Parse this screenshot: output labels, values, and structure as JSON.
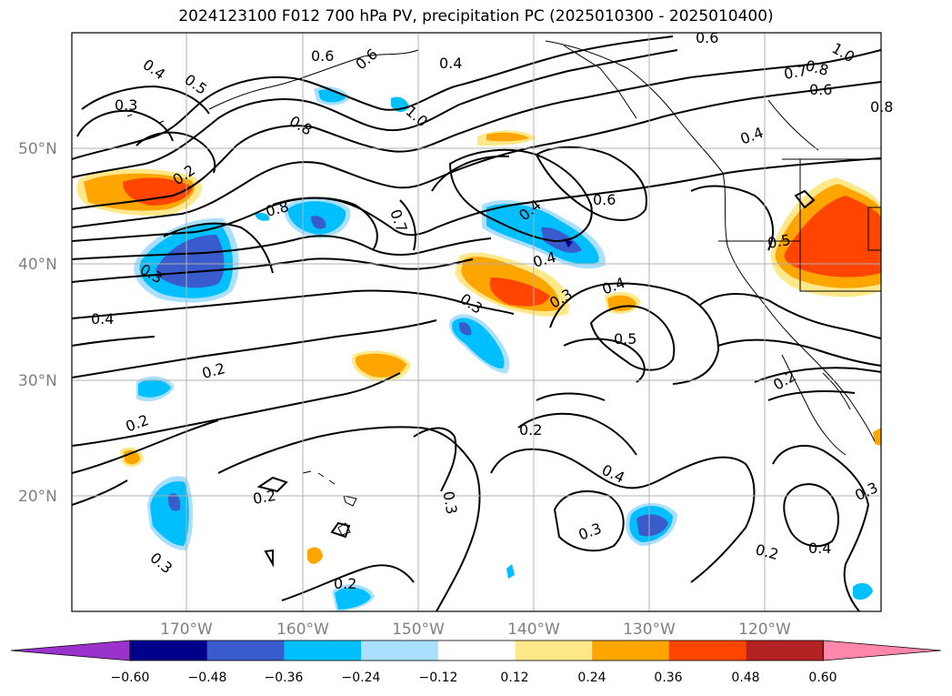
{
  "title": "2024123100 F012 700 hPa PV, precipitation PC (2025010300 - 2025010400)",
  "latitude_labels": [
    "50°N",
    "40°N",
    "30°N",
    "20°N"
  ],
  "longitude_labels": [
    "170°W",
    "160°W",
    "150°W",
    "140°W",
    "130°W",
    "120°W"
  ],
  "colorbar": {
    "ticks": [
      "−0.60",
      "−0.48",
      "−0.36",
      "−0.24",
      "−0.12",
      "0.12",
      "0.24",
      "0.36",
      "0.48",
      "0.60"
    ],
    "colors": [
      "#9933cc",
      "#00008b",
      "#3a5bcc",
      "#00bfff",
      "#aadfff",
      "#ffffff",
      "#ffe88a",
      "#ffa500",
      "#ff4500",
      "#b22222",
      "#ff88aa"
    ]
  },
  "contour_labels": [
    "0.4",
    "0.5",
    "0.3",
    "0.2",
    "0.3",
    "0.4",
    "0.2",
    "0.2",
    "0.3",
    "0.6",
    "0.6",
    "0.8",
    "1.0",
    "0.8",
    "0.7",
    "0.4",
    "0.6",
    "0.4",
    "0.4",
    "0.3",
    "0.3",
    "0.4",
    "0.5",
    "0.2",
    "0.3",
    "0.2",
    "0.4",
    "0.3",
    "0.2",
    "0.6",
    "0.7",
    "0.8",
    "1.0",
    "0.6",
    "0.4",
    "0.5",
    "0.2",
    "0.3",
    "0.4",
    "0.2",
    "0.8",
    "0.6"
  ]
}
